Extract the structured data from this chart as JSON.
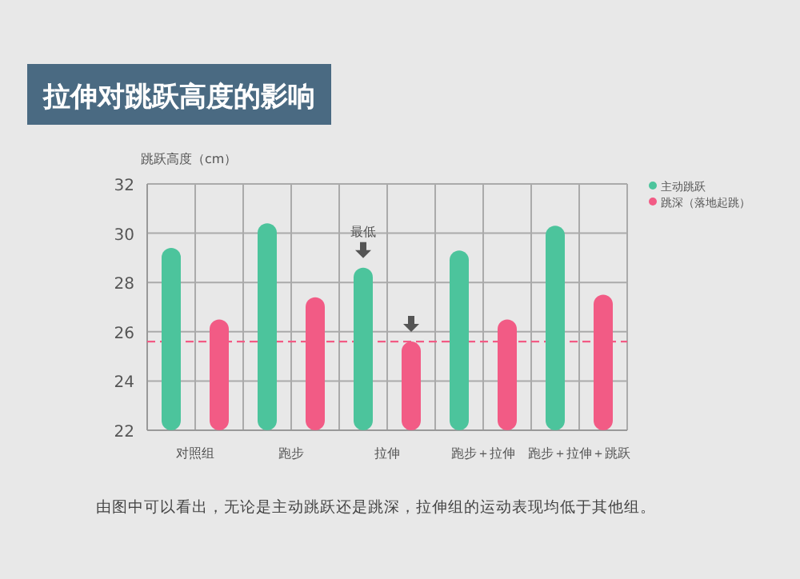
{
  "chart_data": {
    "type": "bar",
    "title": "拉伸对跳跃高度的影响",
    "ylabel": "跳跃高度（cm）",
    "categories": [
      "对照组",
      "跑步",
      "拉伸",
      "跑步＋拉伸",
      "跑步＋拉伸＋跳跃"
    ],
    "series": [
      {
        "name": "主动跳跃",
        "color": "#4cc49c",
        "values": [
          29.4,
          30.4,
          28.6,
          29.3,
          30.3
        ]
      },
      {
        "name": "跳深（落地起跳）",
        "color": "#f25b85",
        "values": [
          26.5,
          27.4,
          25.6,
          26.5,
          27.5
        ]
      }
    ],
    "ylim": [
      22,
      32
    ],
    "yticks": [
      22,
      24,
      26,
      28,
      30,
      32
    ],
    "grid": true,
    "legend": "top right",
    "ref_lines": [
      {
        "axis": "y",
        "value": 25.6,
        "color": "#f25b85",
        "line_style": "dashed"
      }
    ],
    "annotations": [
      "最低",
      "由图中可以看出，无论是主动跳跃还是跳深，拉伸组的运动表现均低于其他组。"
    ]
  }
}
